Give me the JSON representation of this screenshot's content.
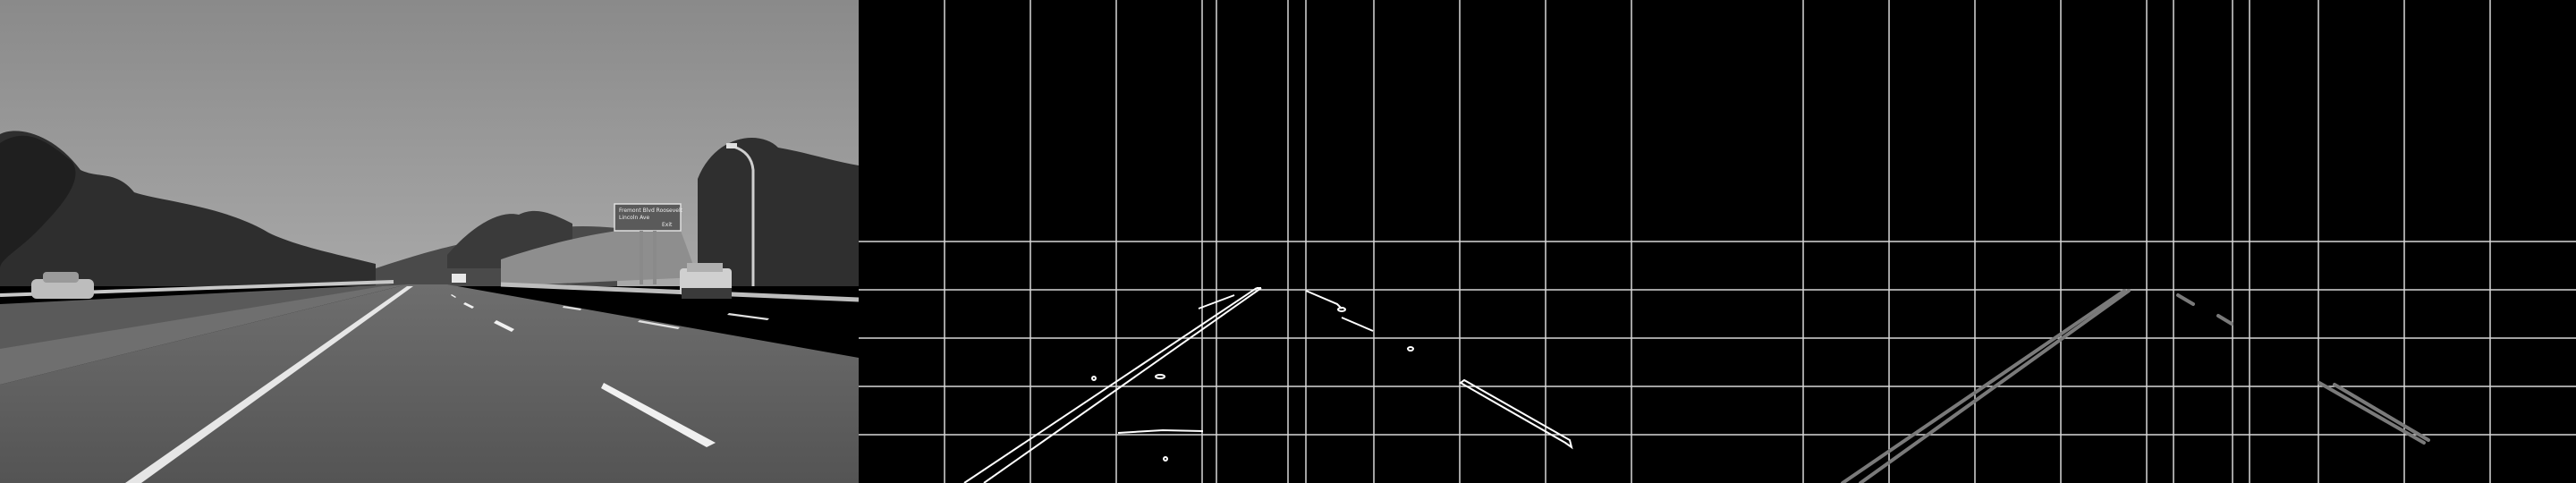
{
  "panels": [
    {
      "name": "grayscale-road"
    },
    {
      "name": "edge-detection"
    },
    {
      "name": "hough-lines"
    }
  ],
  "road_sign": {
    "lines": [
      "Fremont Blvd Roosevelt",
      "Lincoln Ave",
      "Exit"
    ]
  }
}
